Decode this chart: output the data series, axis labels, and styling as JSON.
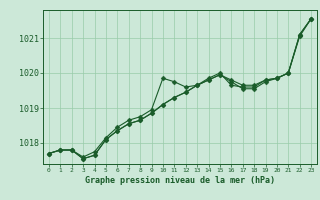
{
  "title": "Graphe pression niveau de la mer (hPa)",
  "background_color": "#cce8d8",
  "plot_bg_color": "#cce8d8",
  "grid_color": "#99ccaa",
  "line_color": "#1a5c2a",
  "xlim": [
    -0.5,
    23.5
  ],
  "ylim": [
    1017.4,
    1021.8
  ],
  "yticks": [
    1018,
    1019,
    1020,
    1021
  ],
  "xticks": [
    0,
    1,
    2,
    3,
    4,
    5,
    6,
    7,
    8,
    9,
    10,
    11,
    12,
    13,
    14,
    15,
    16,
    17,
    18,
    19,
    20,
    21,
    22,
    23
  ],
  "series1": [
    1017.7,
    1017.8,
    1017.8,
    1017.6,
    1017.75,
    1018.15,
    1018.45,
    1018.65,
    1018.75,
    1018.95,
    1019.85,
    1019.75,
    1019.6,
    1019.65,
    1019.85,
    1020.0,
    1019.65,
    1019.6,
    1019.6,
    1019.8,
    1019.85,
    1020.0,
    1021.05,
    1021.55
  ],
  "series2": [
    1017.7,
    1017.8,
    1017.8,
    1017.55,
    1017.65,
    1018.1,
    1018.35,
    1018.55,
    1018.65,
    1018.85,
    1019.1,
    1019.3,
    1019.45,
    1019.65,
    1019.8,
    1019.95,
    1019.8,
    1019.65,
    1019.65,
    1019.8,
    1019.85,
    1020.0,
    1021.1,
    1021.55
  ],
  "series3": [
    1017.7,
    1017.8,
    1017.8,
    1017.55,
    1017.65,
    1018.1,
    1018.35,
    1018.55,
    1018.65,
    1018.85,
    1019.1,
    1019.3,
    1019.45,
    1019.65,
    1019.8,
    1019.95,
    1019.75,
    1019.55,
    1019.55,
    1019.75,
    1019.85,
    1020.0,
    1021.1,
    1021.55
  ]
}
